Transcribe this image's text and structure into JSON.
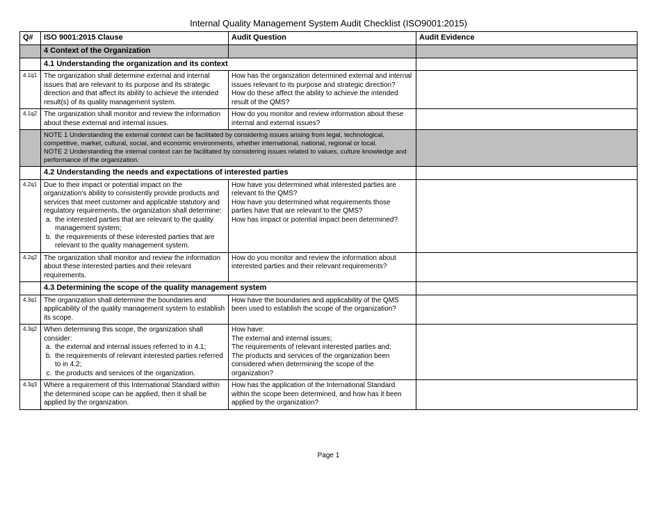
{
  "title": "Internal Quality Management System Audit Checklist (ISO9001:2015)",
  "columns": {
    "q": "Q#",
    "clause": "ISO 9001:2015 Clause",
    "question": "Audit Question",
    "evidence": "Audit Evidence"
  },
  "s4": {
    "heading": "4 Context of the Organization",
    "s41": {
      "heading": "4.1 Understanding the organization and its context",
      "r1": {
        "q": "4.1q1",
        "clause": "The organization shall determine external and internal issues that are relevant to its purpose and its strategic direction and that affect its ability to achieve the intended result(s) of its quality management system.",
        "question": "How has the organization determined external and internal issues relevant to its purpose and strategic direction?\nHow do these affect the ability to achieve the intended result of the QMS?"
      },
      "r2": {
        "q": "4.1q2",
        "clause": "The organization shall monitor and review the information about these external and internal issues.",
        "question": "How do you monitor and review information about these internal and external issues?"
      },
      "note": "NOTE 1 Understanding the external context can be facilitated by considering issues arising from legal, technological, competitive, market, cultural, social, and economic environments, whether international, national, regional or local.\nNOTE 2 Understanding the internal context can be facilitated by considering issues related to values, culture knowledge and performance of the organization."
    },
    "s42": {
      "heading": "4.2 Understanding the needs and expectations of interested parties",
      "r1": {
        "q": "4.2q1",
        "clause_intro": "Due to their impact or potential impact on the organization's ability to consistently provide products and services that meet customer and applicable statutory and regulatory requirements, the organization shall determine:",
        "clause_a": "the interested parties that are relevant to the quality management system;",
        "clause_b": "the requirements of these interested parties that are relevant to the quality management system.",
        "question": "How have you determined what interested parties are relevant to the QMS?\nHow have you determined what requirements those parties have that are relevant to the QMS?\nHow has impact or potential impact been determined?"
      },
      "r2": {
        "q": "4.2q2",
        "clause": "The organization shall monitor and review the information about these interested parties and their relevant requirements.",
        "question": "How do you monitor and review the information about interested parties and their relevant requirements?"
      }
    },
    "s43": {
      "heading": "4.3 Determining the scope of the quality management system",
      "r1": {
        "q": "4.3q1",
        "clause": "The organization shall determine the boundaries and applicability of the quality management system to establish its scope.",
        "question": "How have the boundaries and applicability of the QMS been used to establish the scope of the organization?"
      },
      "r2": {
        "q": "4.3q2",
        "clause_intro": "When determining this scope, the organization shall consider:",
        "clause_a": "the external and internal issues referred to in 4.1;",
        "clause_b": "the requirements of relevant interested parties referred to in 4.2;",
        "clause_c": "the products and services of the organization.",
        "question": "How have:\nThe external and internal issues;\nThe requirements of relevant interested parties and;\nThe products and services of the organization been considered when determining the scope of the organization?"
      },
      "r3": {
        "q": "4.3q3",
        "clause": "Where a requirement of this International Standard within the determined scope can be applied, then it shall be applied by the organization.",
        "question": "How has the application of the International Standard within the scope been determined, and how has it been applied by the organization?"
      }
    }
  },
  "footer": "Page 1"
}
